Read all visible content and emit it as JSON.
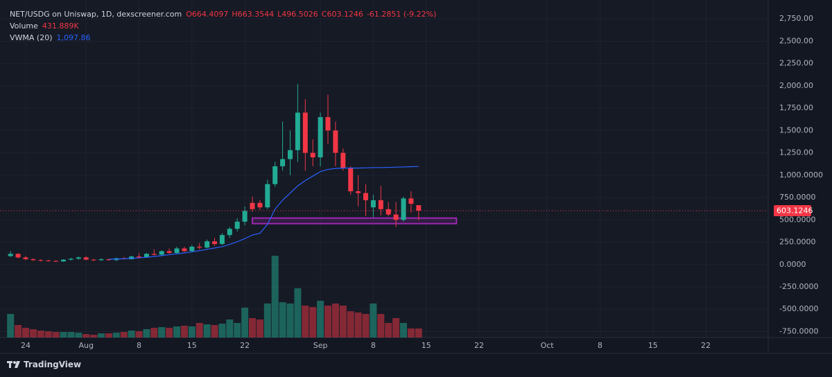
{
  "chart_data": {
    "type": "candlestick",
    "title": "NET/USDG on Uniswap, 1D, dexscreener.com",
    "ohlc": [
      "O664.4097",
      "H663.3544",
      "L496.5026",
      "C603.1246",
      "-61.2851 (-9.22%)"
    ],
    "volume_name": "Volume",
    "volume_label": "431.889K",
    "vwma_label": "1,097.86",
    "brand": "TradingView",
    "up_color": "#22ab94",
    "down_color": "#f23645",
    "x": [
      "07-22",
      "07-23",
      "07-24",
      "07-25",
      "07-26",
      "07-27",
      "07-28",
      "07-29",
      "07-30",
      "07-31",
      "08-01",
      "08-02",
      "08-03",
      "08-04",
      "08-05",
      "08-06",
      "08-07",
      "08-08",
      "08-09",
      "08-10",
      "08-11",
      "08-12",
      "08-13",
      "08-14",
      "08-15",
      "08-16",
      "08-17",
      "08-18",
      "08-19",
      "08-20",
      "08-21",
      "08-22",
      "08-23",
      "08-24",
      "08-25",
      "08-26",
      "08-27",
      "08-28",
      "08-29",
      "08-30",
      "08-31",
      "09-01",
      "09-02",
      "09-03",
      "09-04",
      "09-05",
      "09-06",
      "09-07",
      "09-08",
      "09-09",
      "09-10",
      "09-11",
      "09-12",
      "09-13",
      "09-14"
    ],
    "open": [
      95,
      120,
      80,
      60,
      50,
      45,
      40,
      35,
      55,
      65,
      80,
      55,
      50,
      60,
      50,
      70,
      60,
      90,
      80,
      120,
      110,
      150,
      130,
      180,
      150,
      200,
      190,
      260,
      230,
      330,
      400,
      480,
      690,
      690,
      640,
      900,
      1100,
      1180,
      1280,
      1700,
      1250,
      1200,
      1650,
      1500,
      1250,
      1080,
      820,
      800,
      640,
      720,
      620,
      560,
      500,
      740,
      664.4097
    ],
    "high": [
      150,
      125,
      95,
      70,
      60,
      55,
      50,
      60,
      75,
      90,
      95,
      65,
      70,
      65,
      80,
      85,
      100,
      130,
      130,
      170,
      160,
      180,
      200,
      200,
      220,
      240,
      280,
      300,
      350,
      420,
      520,
      650,
      760,
      720,
      950,
      1150,
      1600,
      1500,
      2020,
      1850,
      1400,
      1700,
      1900,
      1600,
      1300,
      1100,
      1000,
      900,
      780,
      880,
      700,
      700,
      760,
      820,
      663.3544
    ],
    "low": [
      85,
      70,
      50,
      40,
      35,
      35,
      30,
      30,
      45,
      55,
      50,
      40,
      40,
      45,
      40,
      55,
      55,
      70,
      75,
      100,
      100,
      120,
      125,
      140,
      140,
      170,
      180,
      210,
      220,
      300,
      370,
      440,
      590,
      610,
      620,
      870,
      1050,
      1000,
      1150,
      1050,
      1100,
      1100,
      1350,
      1100,
      1050,
      780,
      650,
      540,
      530,
      550,
      540,
      420,
      480,
      580,
      496.5026
    ],
    "close": [
      120,
      80,
      60,
      50,
      45,
      40,
      35,
      55,
      65,
      80,
      55,
      50,
      60,
      50,
      70,
      60,
      90,
      80,
      120,
      110,
      150,
      130,
      180,
      150,
      200,
      190,
      260,
      230,
      330,
      400,
      480,
      600,
      620,
      640,
      900,
      1100,
      1180,
      1280,
      1700,
      1250,
      1200,
      1650,
      1500,
      1250,
      1080,
      820,
      800,
      720,
      720,
      620,
      560,
      500,
      740,
      680,
      603.1246
    ],
    "volume": [
      1130000,
      598000,
      465000,
      399000,
      332000,
      299000,
      266000,
      266000,
      266000,
      233000,
      166000,
      133000,
      199000,
      199000,
      233000,
      266000,
      332000,
      299000,
      399000,
      465000,
      498000,
      465000,
      532000,
      565000,
      532000,
      698000,
      631000,
      598000,
      664000,
      864000,
      698000,
      1430000,
      930000,
      864000,
      1630000,
      3920000,
      1690000,
      1630000,
      2360000,
      1530000,
      1460000,
      1760000,
      1530000,
      1630000,
      1530000,
      1260000,
      1200000,
      1130000,
      1630000,
      1130000,
      698000,
      930000,
      698000,
      432000,
      431889
    ],
    "vwma": {
      "name": "VWMA (20)",
      "color": "#2962ff",
      "values": [
        null,
        null,
        null,
        null,
        null,
        null,
        null,
        null,
        null,
        null,
        null,
        null,
        null,
        60,
        62,
        65,
        70,
        75,
        82,
        90,
        100,
        110,
        120,
        130,
        142,
        155,
        170,
        185,
        200,
        225,
        255,
        290,
        330,
        350,
        450,
        620,
        720,
        800,
        880,
        940,
        990,
        1040,
        1065,
        1075,
        1080,
        1080,
        1080,
        1082,
        1085,
        1085,
        1087,
        1090,
        1092,
        1095,
        1097.86
      ]
    },
    "zone": {
      "x": [
        "08-23",
        "09-19"
      ],
      "y": [
        458,
        520
      ],
      "color": "#9c27b0"
    },
    "ylim": [
      -816,
      2960
    ],
    "yticks": [
      {
        "value": 2750,
        "label": "2,750.00"
      },
      {
        "value": 2500,
        "label": "2,500.00"
      },
      {
        "value": 2250,
        "label": "2,250.00"
      },
      {
        "value": 2000,
        "label": "2,000.00"
      },
      {
        "value": 1750,
        "label": "1,750.00"
      },
      {
        "value": 1500,
        "label": "1,500.00"
      },
      {
        "value": 1250,
        "label": "1,250.00"
      },
      {
        "value": 1000,
        "label": "1,000.0000"
      },
      {
        "value": 750,
        "label": "750.0000"
      },
      {
        "value": 500,
        "label": "500.0000"
      },
      {
        "value": 250,
        "label": "250.0000"
      },
      {
        "value": 0,
        "label": "0.0000"
      },
      {
        "value": -250,
        "label": "-250.0000"
      },
      {
        "value": -500,
        "label": "-500.0000"
      },
      {
        "value": -750,
        "label": "-750.0000"
      }
    ],
    "xticks": [
      {
        "value": "07-24",
        "label": "24"
      },
      {
        "value": "08-01",
        "label": "Aug"
      },
      {
        "value": "08-08",
        "label": "8"
      },
      {
        "value": "08-15",
        "label": "15"
      },
      {
        "value": "08-22",
        "label": "22"
      },
      {
        "value": "09-01",
        "label": "Sep"
      },
      {
        "value": "09-08",
        "label": "8"
      },
      {
        "value": "09-15",
        "label": "15"
      },
      {
        "value": "09-22",
        "label": "22"
      },
      {
        "value": "10-01",
        "label": "Oct"
      },
      {
        "value": "10-08",
        "label": "8"
      },
      {
        "value": "10-15",
        "label": "15"
      },
      {
        "value": "10-22",
        "label": "22"
      }
    ],
    "grid": true
  }
}
